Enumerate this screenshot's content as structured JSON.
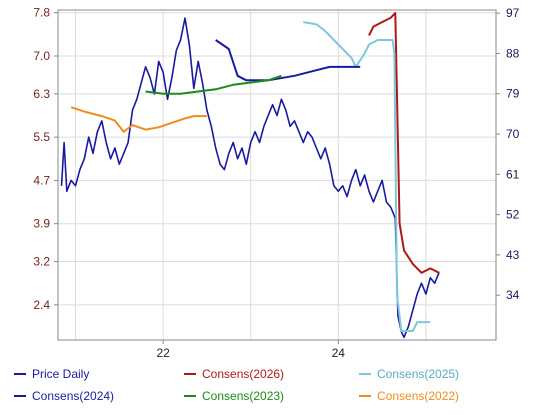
{
  "chart_data": {
    "type": "line",
    "left_axis": {
      "ticks": [
        "7.8",
        "7.0",
        "6.3",
        "5.5",
        "4.7",
        "3.9",
        "3.2",
        "2.4"
      ],
      "values": [
        7.8,
        7.0,
        6.3,
        5.5,
        4.7,
        3.9,
        3.2,
        2.4
      ],
      "range": [
        1.75,
        7.85
      ]
    },
    "right_axis": {
      "ticks": [
        "97",
        "88",
        "79",
        "70",
        "61",
        "52",
        "43",
        "34"
      ],
      "values": [
        97,
        88,
        79,
        70,
        61,
        52,
        43,
        34
      ],
      "range": [
        24,
        97.7
      ]
    },
    "x_axis": {
      "ticks": [
        "22",
        "24"
      ],
      "tick_years": [
        2022,
        2024
      ],
      "range": [
        2020.8,
        2025.8
      ]
    },
    "grid": true,
    "series": [
      {
        "name": "Price Daily",
        "color": "#1a1aa0",
        "axis": "left",
        "points": [
          [
            2020.84,
            4.6
          ],
          [
            2020.87,
            5.4
          ],
          [
            2020.9,
            4.5
          ],
          [
            2020.95,
            4.7
          ],
          [
            2021.0,
            4.6
          ],
          [
            2021.05,
            4.9
          ],
          [
            2021.1,
            5.1
          ],
          [
            2021.15,
            5.5
          ],
          [
            2021.2,
            5.2
          ],
          [
            2021.25,
            5.6
          ],
          [
            2021.3,
            5.8
          ],
          [
            2021.35,
            5.4
          ],
          [
            2021.4,
            5.1
          ],
          [
            2021.45,
            5.3
          ],
          [
            2021.5,
            5.0
          ],
          [
            2021.55,
            5.2
          ],
          [
            2021.6,
            5.4
          ],
          [
            2021.65,
            6.0
          ],
          [
            2021.7,
            6.2
          ],
          [
            2021.75,
            6.5
          ],
          [
            2021.8,
            6.8
          ],
          [
            2021.85,
            6.6
          ],
          [
            2021.9,
            6.3
          ],
          [
            2021.95,
            6.9
          ],
          [
            2022.0,
            6.7
          ],
          [
            2022.05,
            6.2
          ],
          [
            2022.1,
            6.6
          ],
          [
            2022.15,
            7.1
          ],
          [
            2022.2,
            7.3
          ],
          [
            2022.25,
            7.7
          ],
          [
            2022.3,
            7.2
          ],
          [
            2022.35,
            6.4
          ],
          [
            2022.4,
            6.9
          ],
          [
            2022.45,
            6.5
          ],
          [
            2022.5,
            6.0
          ],
          [
            2022.55,
            5.7
          ],
          [
            2022.6,
            5.3
          ],
          [
            2022.65,
            5.0
          ],
          [
            2022.7,
            4.9
          ],
          [
            2022.75,
            5.2
          ],
          [
            2022.8,
            5.4
          ],
          [
            2022.85,
            5.1
          ],
          [
            2022.9,
            5.3
          ],
          [
            2022.95,
            5.0
          ],
          [
            2023.0,
            5.4
          ],
          [
            2023.05,
            5.6
          ],
          [
            2023.1,
            5.4
          ],
          [
            2023.15,
            5.7
          ],
          [
            2023.2,
            5.9
          ],
          [
            2023.25,
            6.1
          ],
          [
            2023.3,
            5.9
          ],
          [
            2023.35,
            6.2
          ],
          [
            2023.4,
            6.0
          ],
          [
            2023.45,
            5.7
          ],
          [
            2023.5,
            5.8
          ],
          [
            2023.55,
            5.6
          ],
          [
            2023.6,
            5.4
          ],
          [
            2023.65,
            5.6
          ],
          [
            2023.7,
            5.5
          ],
          [
            2023.75,
            5.3
          ],
          [
            2023.8,
            5.1
          ],
          [
            2023.85,
            5.3
          ],
          [
            2023.9,
            5.0
          ],
          [
            2023.95,
            4.6
          ],
          [
            2024.0,
            4.5
          ],
          [
            2024.05,
            4.6
          ],
          [
            2024.1,
            4.4
          ],
          [
            2024.15,
            4.7
          ],
          [
            2024.2,
            4.9
          ],
          [
            2024.25,
            4.6
          ],
          [
            2024.3,
            4.8
          ],
          [
            2024.35,
            4.5
          ],
          [
            2024.4,
            4.3
          ],
          [
            2024.45,
            4.5
          ],
          [
            2024.5,
            4.7
          ],
          [
            2024.55,
            4.3
          ],
          [
            2024.6,
            4.2
          ],
          [
            2024.65,
            4.0
          ],
          [
            2024.68,
            2.2
          ],
          [
            2024.72,
            1.9
          ],
          [
            2024.75,
            1.8
          ],
          [
            2024.8,
            2.0
          ],
          [
            2024.85,
            2.3
          ],
          [
            2024.9,
            2.6
          ],
          [
            2024.95,
            2.8
          ],
          [
            2025.0,
            2.6
          ],
          [
            2025.05,
            2.9
          ],
          [
            2025.1,
            2.8
          ],
          [
            2025.15,
            3.0
          ]
        ]
      },
      {
        "name": "Consens(2026)",
        "color": "#b01818",
        "axis": "right",
        "points": [
          [
            2024.35,
            92
          ],
          [
            2024.4,
            94
          ],
          [
            2024.5,
            95
          ],
          [
            2024.6,
            96
          ],
          [
            2024.65,
            97
          ],
          [
            2024.7,
            50
          ],
          [
            2024.75,
            44
          ],
          [
            2024.85,
            41
          ],
          [
            2024.95,
            39
          ],
          [
            2025.05,
            40
          ],
          [
            2025.15,
            39
          ]
        ]
      },
      {
        "name": "Consens(2025)",
        "color": "#7ec8dc",
        "axis": "right",
        "points": [
          [
            2023.6,
            95
          ],
          [
            2023.75,
            94.5
          ],
          [
            2023.85,
            93
          ],
          [
            2023.95,
            91
          ],
          [
            2024.05,
            89
          ],
          [
            2024.15,
            87
          ],
          [
            2024.2,
            85
          ],
          [
            2024.3,
            88
          ],
          [
            2024.35,
            90
          ],
          [
            2024.45,
            91
          ],
          [
            2024.62,
            91
          ],
          [
            2024.64,
            88
          ],
          [
            2024.67,
            34
          ],
          [
            2024.72,
            26
          ],
          [
            2024.85,
            26
          ],
          [
            2024.9,
            28
          ],
          [
            2025.05,
            28
          ]
        ]
      },
      {
        "name": "Consens(2024)",
        "color": "#1a1aa0",
        "axis": "right",
        "points": [
          [
            2022.6,
            91
          ],
          [
            2022.75,
            89
          ],
          [
            2022.85,
            83
          ],
          [
            2022.95,
            82
          ],
          [
            2023.2,
            82
          ],
          [
            2023.5,
            83
          ],
          [
            2023.7,
            84
          ],
          [
            2023.9,
            85
          ],
          [
            2024.0,
            85
          ],
          [
            2024.1,
            85
          ],
          [
            2024.25,
            85
          ]
        ]
      },
      {
        "name": "Consens(2023)",
        "color": "#1a8c1a",
        "axis": "right",
        "points": [
          [
            2021.8,
            79.5
          ],
          [
            2022.0,
            79
          ],
          [
            2022.2,
            79
          ],
          [
            2022.4,
            79.5
          ],
          [
            2022.6,
            80
          ],
          [
            2022.8,
            81
          ],
          [
            2023.0,
            81.5
          ],
          [
            2023.2,
            82
          ],
          [
            2023.35,
            83
          ]
        ]
      },
      {
        "name": "Consens(2022)",
        "color": "#f08c1e",
        "axis": "right",
        "points": [
          [
            2020.95,
            76
          ],
          [
            2021.1,
            75
          ],
          [
            2021.3,
            74
          ],
          [
            2021.45,
            73
          ],
          [
            2021.55,
            70.5
          ],
          [
            2021.65,
            72
          ],
          [
            2021.8,
            71
          ],
          [
            2021.95,
            71.5
          ],
          [
            2022.1,
            72.5
          ],
          [
            2022.25,
            73.5
          ],
          [
            2022.35,
            74
          ],
          [
            2022.5,
            74
          ]
        ]
      }
    ]
  },
  "legend": [
    {
      "label": "Price Daily",
      "color": "#1a1aa0"
    },
    {
      "label": "Consens(2026)",
      "color": "#b01818"
    },
    {
      "label": "Consens(2025)",
      "color": "#7ec8dc"
    },
    {
      "label": "Consens(2024)",
      "color": "#1a1aa0"
    },
    {
      "label": "Consens(2023)",
      "color": "#1a8c1a"
    },
    {
      "label": "Consens(2022)",
      "color": "#f08c1e"
    }
  ]
}
